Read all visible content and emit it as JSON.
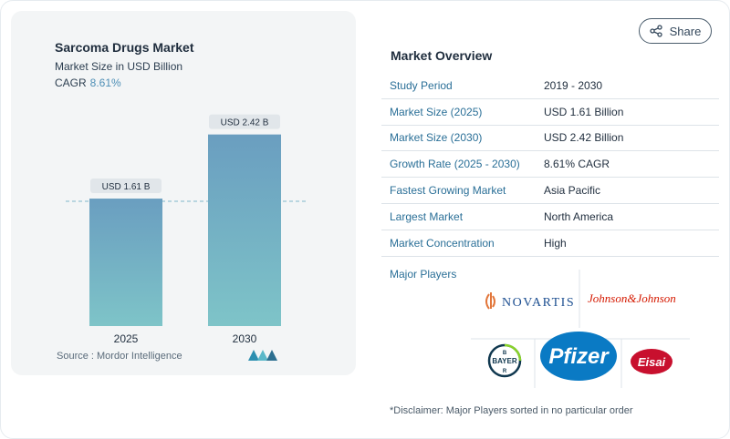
{
  "share": {
    "label": "Share",
    "icon": "share-icon"
  },
  "chart_data": {
    "type": "bar",
    "title": "Sarcoma Drugs Market",
    "subtitle": "Market Size in USD Billion",
    "cagr_label": "CAGR",
    "cagr_value": "8.61%",
    "categories": [
      "2025",
      "2030"
    ],
    "values": [
      1.61,
      2.42
    ],
    "data_labels": [
      "USD 1.61 B",
      "USD 2.42 B"
    ],
    "ylim": [
      0,
      2.6
    ],
    "grid": false,
    "bar_color_top": "#6a9ec0",
    "bar_color_bottom": "#7ec4c8"
  },
  "source": {
    "text": "Source :  Mordor Intelligence"
  },
  "overview": {
    "title": "Market Overview",
    "rows": [
      {
        "key": "Study Period",
        "value": "2019 - 2030"
      },
      {
        "key": "Market Size (2025)",
        "value": "USD 1.61 Billion"
      },
      {
        "key": "Market Size (2030)",
        "value": "USD 2.42 Billion"
      },
      {
        "key": "Growth Rate (2025 - 2030)",
        "value": "8.61% CAGR"
      },
      {
        "key": "Fastest Growing Market",
        "value": "Asia Pacific"
      },
      {
        "key": "Largest Market",
        "value": "North America"
      },
      {
        "key": "Market Concentration",
        "value": "High"
      }
    ]
  },
  "players": {
    "title": "Major Players",
    "logos": [
      "NOVARTIS",
      "Johnson&Johnson",
      "BAYER",
      "Pfizer",
      "Eisai"
    ]
  },
  "disclaimer": "*Disclaimer: Major Players sorted in no particular order",
  "colors": {
    "accent": "#2a6f97",
    "pfizer_blue": "#0a7ac4",
    "eisai_red": "#c8102e",
    "jnj_red": "#d51900"
  }
}
